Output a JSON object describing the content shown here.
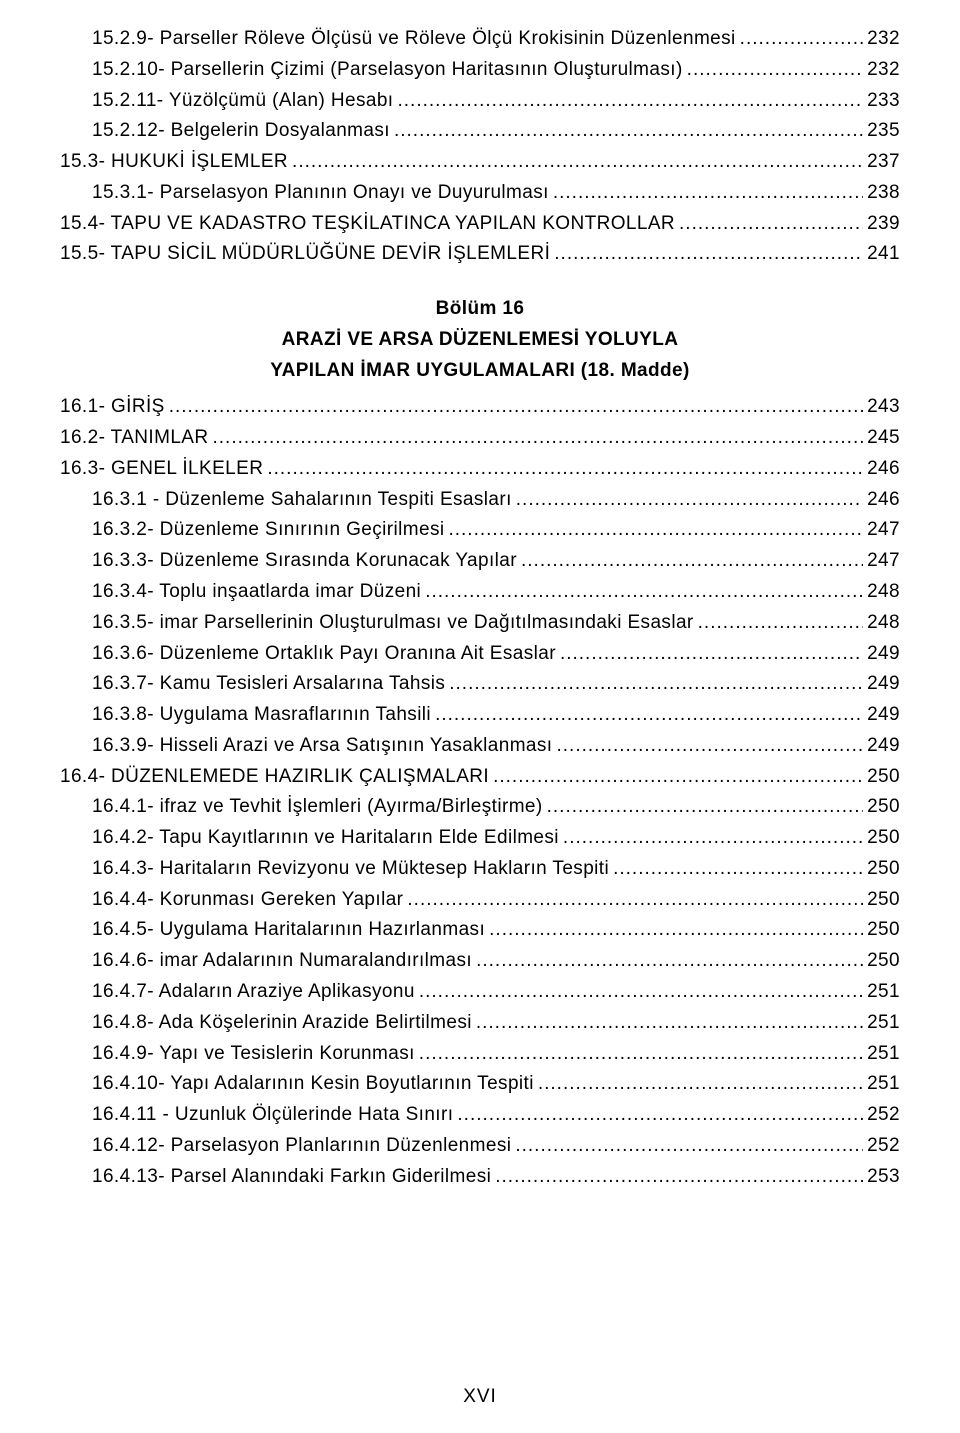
{
  "section_heading": {
    "line1": "Bölüm 16",
    "line2": "ARAZİ VE ARSA DÜZENLEMESİ YOLUYLA",
    "line3": "YAPILAN İMAR UYGULAMALARI (18. Madde)"
  },
  "page_number": "XVI",
  "toc": [
    {
      "indent": 1,
      "label": "15.2.9- Parseller Röleve Ölçüsü ve Röleve Ölçü Krokisinin Düzenlenmesi",
      "page": "232"
    },
    {
      "indent": 1,
      "label": "15.2.10- Parsellerin Çizimi (Parselasyon Haritasının Oluşturulması)",
      "page": "232"
    },
    {
      "indent": 1,
      "label": "15.2.11- Yüzölçümü (Alan) Hesabı",
      "page": "233"
    },
    {
      "indent": 1,
      "label": "15.2.12- Belgelerin Dosyalanması",
      "page": "235"
    },
    {
      "indent": 0,
      "label": "15.3- HUKUKİ İŞLEMLER",
      "page": "237"
    },
    {
      "indent": 1,
      "label": "15.3.1- Parselasyon Planının Onayı ve Duyurulması",
      "page": "238"
    },
    {
      "indent": 0,
      "label": "15.4- TAPU VE KADASTRO TEŞKİLATINCA YAPILAN KONTROLLAR",
      "page": "239"
    },
    {
      "indent": 0,
      "label": "15.5- TAPU SİCİL MÜDÜRLÜĞÜNE DEVİR İŞLEMLERİ",
      "page": "241"
    },
    {
      "heading": true
    },
    {
      "indent": 0,
      "label": "16.1- GİRİŞ",
      "page": "243"
    },
    {
      "indent": 0,
      "label": "16.2- TANIMLAR",
      "page": "245"
    },
    {
      "indent": 0,
      "label": "16.3- GENEL İLKELER",
      "page": "246"
    },
    {
      "indent": 1,
      "label": "16.3.1 - Düzenleme Sahalarının Tespiti Esasları",
      "page": "246"
    },
    {
      "indent": 1,
      "label": "16.3.2- Düzenleme Sınırının Geçirilmesi",
      "page": "247"
    },
    {
      "indent": 1,
      "label": "16.3.3- Düzenleme Sırasında Korunacak Yapılar",
      "page": "247"
    },
    {
      "indent": 1,
      "label": "16.3.4- Toplu inşaatlarda imar Düzeni",
      "page": "248"
    },
    {
      "indent": 1,
      "label": "16.3.5- imar Parsellerinin Oluşturulması ve Dağıtılmasındaki Esaslar",
      "page": "248"
    },
    {
      "indent": 1,
      "label": "16.3.6- Düzenleme Ortaklık Payı Oranına Ait Esaslar",
      "page": "249"
    },
    {
      "indent": 1,
      "label": "16.3.7- Kamu Tesisleri Arsalarına Tahsis",
      "page": "249"
    },
    {
      "indent": 1,
      "label": "16.3.8- Uygulama Masraflarının Tahsili",
      "page": "249"
    },
    {
      "indent": 1,
      "label": "16.3.9- Hisseli Arazi ve Arsa Satışının Yasaklanması",
      "page": "249"
    },
    {
      "indent": 0,
      "label": "16.4- DÜZENLEMEDE HAZIRLIK ÇALIŞMALARI",
      "page": "250"
    },
    {
      "indent": 1,
      "label": "16.4.1- ifraz ve Tevhit İşlemleri (Ayırma/Birleştirme)",
      "page": "250"
    },
    {
      "indent": 1,
      "label": "16.4.2- Tapu Kayıtlarının ve Haritaların Elde Edilmesi",
      "page": "250"
    },
    {
      "indent": 1,
      "label": "16.4.3- Haritaların Revizyonu ve Müktesep Hakların Tespiti",
      "page": "250"
    },
    {
      "indent": 1,
      "label": "16.4.4- Korunması Gereken Yapılar",
      "page": "250"
    },
    {
      "indent": 1,
      "label": "16.4.5- Uygulama Haritalarının Hazırlanması",
      "page": "250"
    },
    {
      "indent": 1,
      "label": "16.4.6- imar Adalarının Numaralandırılması",
      "page": "250"
    },
    {
      "indent": 1,
      "label": "16.4.7- Adaların Araziye Aplikasyonu",
      "page": "251"
    },
    {
      "indent": 1,
      "label": "16.4.8- Ada Köşelerinin Arazide Belirtilmesi",
      "page": "251"
    },
    {
      "indent": 1,
      "label": "16.4.9- Yapı ve Tesislerin Korunması",
      "page": "251"
    },
    {
      "indent": 1,
      "label": "16.4.10- Yapı Adalarının Kesin Boyutlarının Tespiti",
      "page": "251"
    },
    {
      "indent": 1,
      "label": "16.4.11 - Uzunluk Ölçülerinde Hata Sınırı",
      "page": "252"
    },
    {
      "indent": 1,
      "label": "16.4.12- Parselasyon Planlarının Düzenlenmesi",
      "page": "252"
    },
    {
      "indent": 1,
      "label": "16.4.13- Parsel Alanındaki Farkın Giderilmesi",
      "page": "253"
    }
  ]
}
